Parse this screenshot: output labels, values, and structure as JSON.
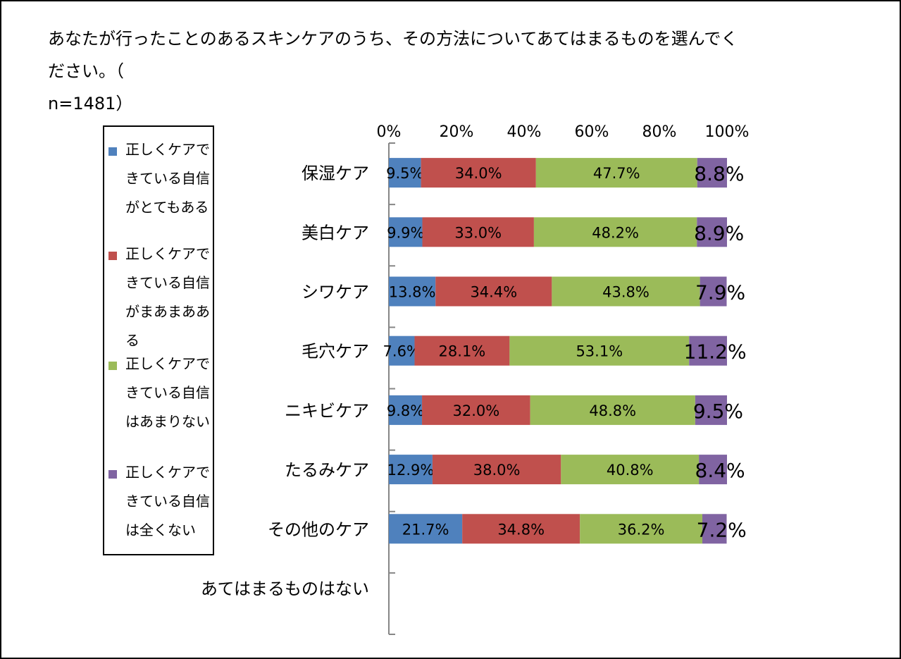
{
  "chart_data": {
    "type": "bar",
    "orientation": "horizontal",
    "stacked": true,
    "percent": true,
    "title_lines": [
      "あなたが行ったことのあるスキンケアのうち、その方法についてあてはまるものを選んでください。（",
      "n=1481）"
    ],
    "categories": [
      "保湿ケア",
      "美白ケア",
      "シワケア",
      "毛穴ケア",
      "ニキビケア",
      "たるみケア",
      "その他のケア",
      "あてはまるものはない"
    ],
    "x_ticks": [
      "0%",
      "20%",
      "40%",
      "60%",
      "80%",
      "100%"
    ],
    "xlim": [
      0,
      100
    ],
    "series": [
      {
        "name": "正しくケアできている自信がとてもある",
        "legend_lines": [
          "正しくケアで",
          "きている自信",
          "がとてもある"
        ],
        "color": "#4F81BD",
        "values": [
          9.5,
          9.9,
          13.8,
          7.6,
          9.8,
          12.9,
          21.7,
          null
        ],
        "labels": [
          "9.5%",
          "9.9%",
          "13.8%",
          "7.6%",
          "9.8%",
          "12.9%",
          "21.7%",
          ""
        ]
      },
      {
        "name": "正しくケアできている自信がまあまあある",
        "legend_lines": [
          "正しくケアで",
          "きている自信",
          "がまあまああ",
          "る"
        ],
        "color": "#C0504D",
        "values": [
          34.0,
          33.0,
          34.4,
          28.1,
          32.0,
          38.0,
          34.8,
          null
        ],
        "labels": [
          "34.0%",
          "33.0%",
          "34.4%",
          "28.1%",
          "32.0%",
          "38.0%",
          "34.8%",
          ""
        ]
      },
      {
        "name": "正しくケアできている自信はあまりない",
        "legend_lines": [
          "正しくケアで",
          "きている自信",
          "はあまりない"
        ],
        "color": "#9BBB59",
        "values": [
          47.7,
          48.2,
          43.8,
          53.1,
          48.8,
          40.8,
          36.2,
          null
        ],
        "labels": [
          "47.7%",
          "48.2%",
          "43.8%",
          "53.1%",
          "48.8%",
          "40.8%",
          "36.2%",
          ""
        ]
      },
      {
        "name": "正しくケアできている自信は全くない",
        "legend_lines": [
          "正しくケアで",
          "きている自信",
          "は全くない"
        ],
        "color": "#8064A2",
        "values": [
          8.8,
          8.9,
          7.9,
          11.2,
          9.5,
          8.4,
          7.2,
          null
        ],
        "labels": [
          "8.8%",
          "8.9%",
          "7.9%",
          "11.2%",
          "9.5%",
          "8.4%",
          "7.2%",
          ""
        ]
      }
    ]
  }
}
